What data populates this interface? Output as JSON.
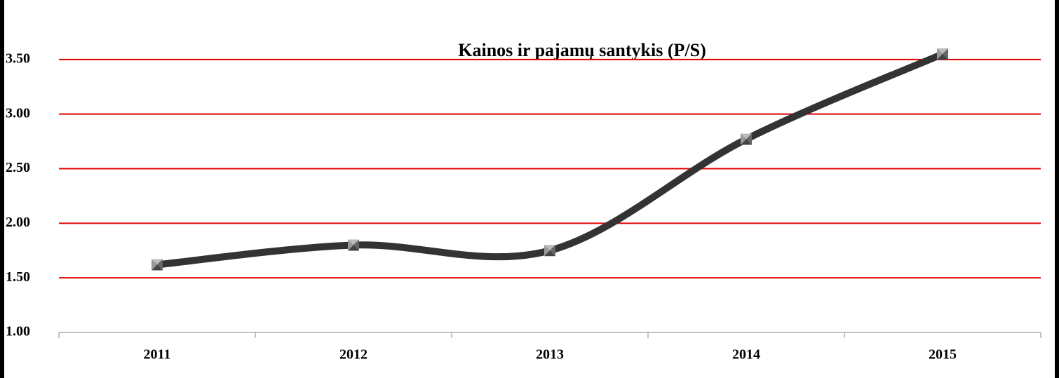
{
  "chart_data": {
    "type": "line",
    "title": "Kainos ir pajamų santykis (P/S)",
    "categories": [
      "2011",
      "2012",
      "2013",
      "2014",
      "2015"
    ],
    "series": [
      {
        "name": "P/S",
        "color": "#333333",
        "values": [
          1.62,
          1.8,
          1.75,
          2.77,
          3.55
        ]
      }
    ],
    "ylim": [
      1,
      4
    ],
    "yticks": [
      {
        "value": 1,
        "label": "1.00"
      },
      {
        "value": 1.5,
        "label": "1.50"
      },
      {
        "value": 2,
        "label": "2.00"
      },
      {
        "value": 2.5,
        "label": "2.50"
      },
      {
        "value": 3,
        "label": "3.00"
      },
      {
        "value": 3.5,
        "label": "3.50"
      }
    ],
    "grid": true,
    "grid_color": "#e00000",
    "smooth": true
  }
}
